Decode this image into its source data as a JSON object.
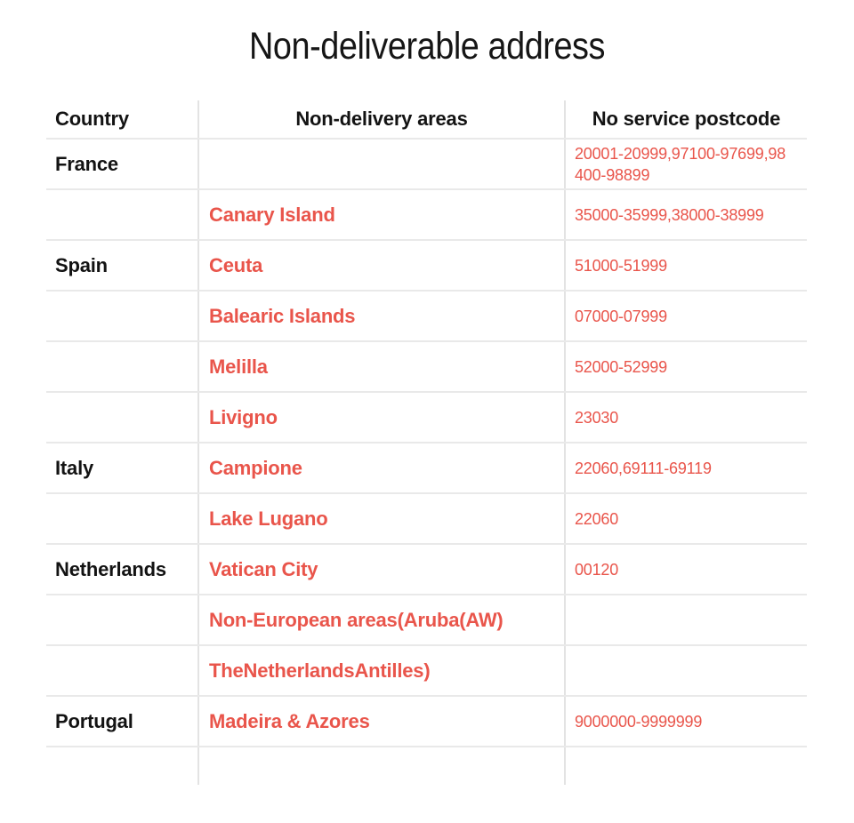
{
  "page": {
    "title": "Non-deliverable address"
  },
  "colors": {
    "accent_red": "#e9554b",
    "text_black": "#131313",
    "grid_line": "#e6e6e6",
    "background": "#ffffff"
  },
  "table": {
    "headers": [
      "Country",
      "Non-delivery areas",
      "No service postcode"
    ],
    "rows": [
      {
        "country": "France",
        "area": "",
        "postcode": "20001-20999,97100-97699,98400-98899"
      },
      {
        "country": "",
        "area": "Canary Island",
        "postcode": "35000-35999,38000-38999"
      },
      {
        "country": "Spain",
        "area": "Ceuta",
        "postcode": "51000-51999"
      },
      {
        "country": "",
        "area": "Balearic Islands",
        "postcode": "07000-07999"
      },
      {
        "country": "",
        "area": "Melilla",
        "postcode": "52000-52999"
      },
      {
        "country": "",
        "area": "Livigno",
        "postcode": "23030"
      },
      {
        "country": "Italy",
        "area": "Campione",
        "postcode": "22060,69111-69119"
      },
      {
        "country": "",
        "area": "Lake Lugano",
        "postcode": "22060"
      },
      {
        "country": "Netherlands",
        "area": "Vatican City",
        "postcode": "00120"
      },
      {
        "country": "",
        "area": "Non-European areas(Aruba(AW)",
        "postcode": ""
      },
      {
        "country": "",
        "area": "TheNetherlandsAntilles)",
        "postcode": ""
      },
      {
        "country": "Portugal",
        "area": "Madeira & Azores",
        "postcode": "9000000-9999999"
      },
      {
        "country": "",
        "area": "",
        "postcode": ""
      }
    ]
  }
}
